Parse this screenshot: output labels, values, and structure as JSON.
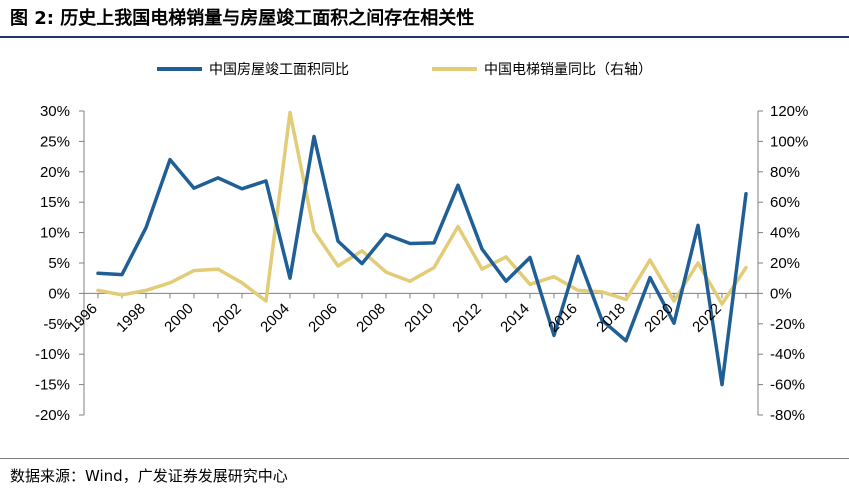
{
  "header": {
    "title": "图 2: 历史上我国电梯销量与房屋竣工面积之间存在相关性"
  },
  "footer": {
    "source": "数据来源：Wind，广发证券发展研究中心"
  },
  "colors": {
    "series_completion": "#1f5f96",
    "series_elevator": "#e3cc78",
    "axis": "#808080",
    "rule": "#1f3864"
  },
  "chart_data": {
    "type": "line",
    "title": "图 2: 历史上我国电梯销量与房屋竣工面积之间存在相关性",
    "x": [
      1996,
      1997,
      1998,
      1999,
      2000,
      2001,
      2002,
      2003,
      2004,
      2005,
      2006,
      2007,
      2008,
      2009,
      2010,
      2011,
      2012,
      2013,
      2014,
      2015,
      2016,
      2017,
      2018,
      2019,
      2020,
      2021,
      2022,
      2023
    ],
    "x_tick_labels": [
      "1996",
      "1998",
      "2000",
      "2002",
      "2004",
      "2006",
      "2008",
      "2010",
      "2012",
      "2014",
      "2016",
      "2018",
      "2020",
      "2022"
    ],
    "y_left": {
      "min": -20,
      "max": 30,
      "step": 5,
      "tick_labels": [
        "30%",
        "25%",
        "20%",
        "15%",
        "10%",
        "5%",
        "0%",
        "-5%",
        "-10%",
        "-15%",
        "-20%"
      ]
    },
    "y_right": {
      "min": -80,
      "max": 120,
      "step": 20,
      "tick_labels": [
        "120%",
        "100%",
        "80%",
        "60%",
        "40%",
        "20%",
        "0%",
        "-20%",
        "-40%",
        "-60%",
        "-80%"
      ]
    },
    "legend_position": "top",
    "series": [
      {
        "name": "中国房屋竣工面积同比",
        "axis": "left",
        "color": "#1f5f96",
        "values": [
          3.3,
          3.1,
          10.8,
          22.0,
          17.3,
          19.0,
          17.2,
          18.5,
          2.5,
          25.8,
          8.6,
          4.9,
          9.7,
          8.2,
          8.3,
          17.8,
          7.3,
          2.0,
          5.9,
          -6.9,
          6.1,
          -4.4,
          -7.8,
          2.6,
          -4.9,
          11.2,
          -15.0,
          16.4
        ]
      },
      {
        "name": "中国电梯销量同比（右轴）",
        "axis": "right",
        "color": "#e3cc78",
        "values": [
          2,
          -1,
          2,
          7,
          15,
          16,
          7,
          -5,
          119,
          41,
          18,
          28,
          14,
          8,
          17,
          44,
          16,
          24,
          6,
          11,
          2,
          1,
          -4,
          22,
          -5,
          20,
          -7,
          17
        ]
      }
    ]
  }
}
